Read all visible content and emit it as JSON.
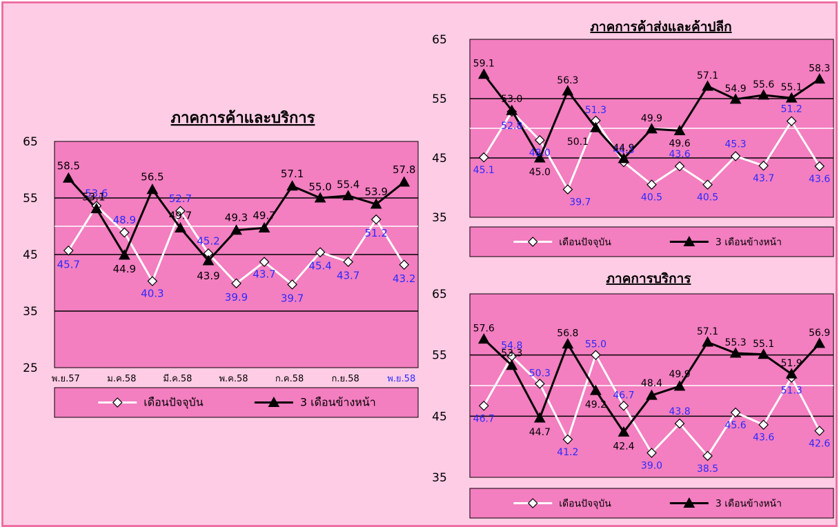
{
  "colors": {
    "background": "#ffcce5",
    "plot_area": "#f37ec0",
    "frame_border": "#ee6fa3",
    "current_series": "#ffffff",
    "next_series": "#000000",
    "current_label": "#2a2aff",
    "next_label": "#000000"
  },
  "chart_data": [
    {
      "type": "line",
      "title": "ภาคการค้าและบริการ",
      "x": [
        "พ.ย.57",
        "",
        "ม.ค.58",
        "",
        "มี.ค.58",
        "",
        "พ.ค.58",
        "",
        "ก.ค.58",
        "",
        "ก.ย.58",
        "",
        "พ.ย.58"
      ],
      "x_tick_labels": [
        "พ.ย.57",
        "ม.ค.58",
        "มี.ค.58",
        "พ.ค.58",
        "ก.ค.58",
        "ก.ย.58",
        "พ.ย.58"
      ],
      "ylim": [
        25,
        65
      ],
      "y_ticks": [
        25,
        35,
        45,
        55,
        65
      ],
      "reference_line": 50,
      "series": [
        {
          "name": "เดือนปัจจุบัน",
          "marker": "diamond",
          "values": [
            45.7,
            53.6,
            48.9,
            40.3,
            52.7,
            45.2,
            39.9,
            43.7,
            39.7,
            45.4,
            43.7,
            51.2,
            43.2
          ]
        },
        {
          "name": "3 เดือนข้างหน้า",
          "marker": "triangle",
          "values": [
            58.5,
            53.1,
            44.9,
            56.5,
            49.7,
            43.9,
            49.3,
            49.7,
            57.1,
            55.0,
            55.4,
            53.9,
            57.8
          ]
        }
      ],
      "legend": "bottom"
    },
    {
      "type": "line",
      "title": "ภาคการค้าส่งและค้าปลีก",
      "ylim": [
        35,
        65
      ],
      "y_ticks": [
        35,
        45,
        55,
        65
      ],
      "reference_line": 50,
      "series": [
        {
          "name": "เดือนปัจจุบัน",
          "marker": "diamond",
          "values": [
            45.1,
            52.8,
            48.0,
            39.7,
            51.3,
            44.3,
            40.5,
            43.6,
            40.5,
            45.3,
            43.7,
            51.2,
            43.6
          ]
        },
        {
          "name": "3 เดือนข้างหน้า",
          "marker": "triangle",
          "values": [
            59.1,
            53.0,
            45.0,
            56.3,
            50.1,
            44.9,
            49.9,
            49.6,
            57.1,
            54.9,
            55.6,
            55.1,
            58.3
          ]
        }
      ],
      "legend": "bottom"
    },
    {
      "type": "line",
      "title": "ภาคการบริการ",
      "ylim": [
        35,
        65
      ],
      "y_ticks": [
        35,
        45,
        55,
        65
      ],
      "reference_line": 50,
      "series": [
        {
          "name": "เดือนปัจจุบัน",
          "marker": "diamond",
          "values": [
            46.7,
            54.8,
            50.3,
            41.2,
            55.0,
            46.7,
            39.0,
            43.8,
            38.5,
            45.6,
            43.6,
            51.3,
            42.6
          ]
        },
        {
          "name": "3 เดือนข้างหน้า",
          "marker": "triangle",
          "values": [
            57.6,
            53.3,
            44.7,
            56.8,
            49.2,
            42.4,
            48.4,
            49.9,
            57.1,
            55.3,
            55.1,
            51.9,
            56.9
          ]
        }
      ],
      "legend": "bottom"
    }
  ]
}
